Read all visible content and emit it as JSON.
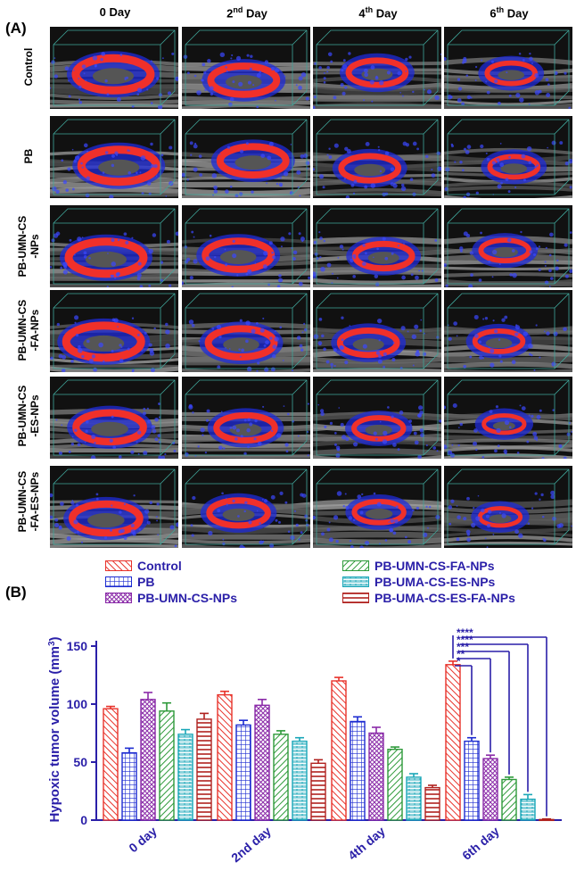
{
  "panel_a": {
    "label": "(A)",
    "columns": [
      {
        "main": "0 Day",
        "num": "0",
        "sup": "",
        "rest": " Day"
      },
      {
        "main": "2nd Day",
        "num": "2",
        "sup": "nd",
        "rest": " Day"
      },
      {
        "main": "4th Day",
        "num": "4",
        "sup": "th",
        "rest": " Day"
      },
      {
        "main": "6th Day",
        "num": "6",
        "sup": "th",
        "rest": " Day"
      }
    ],
    "rows": [
      {
        "l1": "Control",
        "l2": ""
      },
      {
        "l1": "PB",
        "l2": ""
      },
      {
        "l1": "PB-UMN-CS",
        "l2": "-NPs"
      },
      {
        "l1": "PB-UMN-CS",
        "l2": "-FA-NPs"
      },
      {
        "l1": "PB-UMN-CS",
        "l2": "-ES-NPs"
      },
      {
        "l1": "PB-UMN-CS",
        "l2": "-FA-ES-NPs"
      }
    ]
  },
  "panel_b": {
    "label": "(B)"
  },
  "colors": {
    "control": "#e8322a",
    "pb": "#1c2bd1",
    "pb_umn_cs_nps": "#8a2aa8",
    "fa_nps": "#2e9a3a",
    "es_nps": "#1aa7b8",
    "es_fa_nps": "#b0211e",
    "axis": "#2a1fa8"
  },
  "chart_data": {
    "type": "bar",
    "title": "",
    "xlabel": "",
    "ylabel": "Hypoxic tumor volume (mm3)",
    "ylabel_main": "Hypoxic tumor volume (mm",
    "ylabel_sup": "3",
    "ylabel_end": ")",
    "ylim": [
      0,
      150
    ],
    "yticks": [
      "0",
      "50",
      "100",
      "150"
    ],
    "ytick_values": [
      0,
      50,
      100,
      150
    ],
    "categories": [
      "0 day",
      "2nd day",
      "4th day",
      "6th day"
    ],
    "series": [
      {
        "name": "Control",
        "key": "control",
        "values": [
          96,
          108,
          120,
          134
        ],
        "errors": [
          2,
          3,
          3,
          3
        ]
      },
      {
        "name": "PB",
        "key": "pb",
        "values": [
          58,
          82,
          85,
          68
        ],
        "errors": [
          4,
          4,
          4,
          3
        ]
      },
      {
        "name": "PB-UMN-CS-NPs",
        "key": "pb_umn_cs_nps",
        "values": [
          104,
          99,
          75,
          53
        ],
        "errors": [
          6,
          5,
          5,
          3
        ]
      },
      {
        "name": "PB-UMN-CS-FA-NPs",
        "key": "fa_nps",
        "values": [
          94,
          74,
          61,
          35
        ],
        "errors": [
          7,
          3,
          2,
          2
        ]
      },
      {
        "name": "PB-UMA-CS-ES-NPs",
        "key": "es_nps",
        "values": [
          74,
          68,
          37,
          18
        ],
        "errors": [
          4,
          3,
          3,
          4
        ]
      },
      {
        "name": "PB-UMA-CS-ES-FA-NPs",
        "key": "es_fa_nps",
        "values": [
          87,
          49,
          28,
          0.5
        ],
        "errors": [
          5,
          3,
          2,
          0.5
        ]
      }
    ],
    "significance": [
      "*",
      "**",
      "***",
      "****",
      "****"
    ],
    "legend_position": "top"
  }
}
